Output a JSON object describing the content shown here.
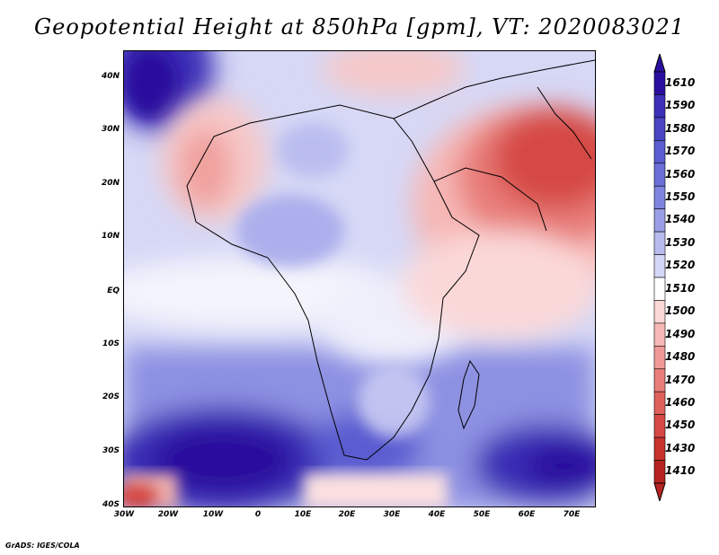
{
  "title": "Geopotential Height at 850hPa [gpm], VT: 2020083021",
  "footer": "GrADS: IGES/COLA",
  "map": {
    "lat_labels": [
      "40N",
      "30N",
      "20N",
      "10N",
      "EQ",
      "10S",
      "20S",
      "30S",
      "40S"
    ],
    "lon_labels": [
      "30W",
      "20W",
      "10W",
      "0",
      "10E",
      "20E",
      "30E",
      "40E",
      "50E",
      "60E",
      "70E"
    ]
  },
  "colorbar": {
    "levels": [
      "1610",
      "1590",
      "1580",
      "1570",
      "1560",
      "1550",
      "1540",
      "1530",
      "1520",
      "1510",
      "1500",
      "1490",
      "1480",
      "1470",
      "1460",
      "1450",
      "1430",
      "1410"
    ],
    "colors": [
      "#2a0f9e",
      "#3c2fb8",
      "#4a46c4",
      "#5a5cd0",
      "#6c6fd8",
      "#7f84df",
      "#9a9ee6",
      "#b8bbee",
      "#d5d7f6",
      "#ffffff",
      "#fbd8d8",
      "#f6b8b6",
      "#f09a97",
      "#e87d79",
      "#df615c",
      "#d54a44",
      "#c8332e",
      "#b52420"
    ]
  }
}
